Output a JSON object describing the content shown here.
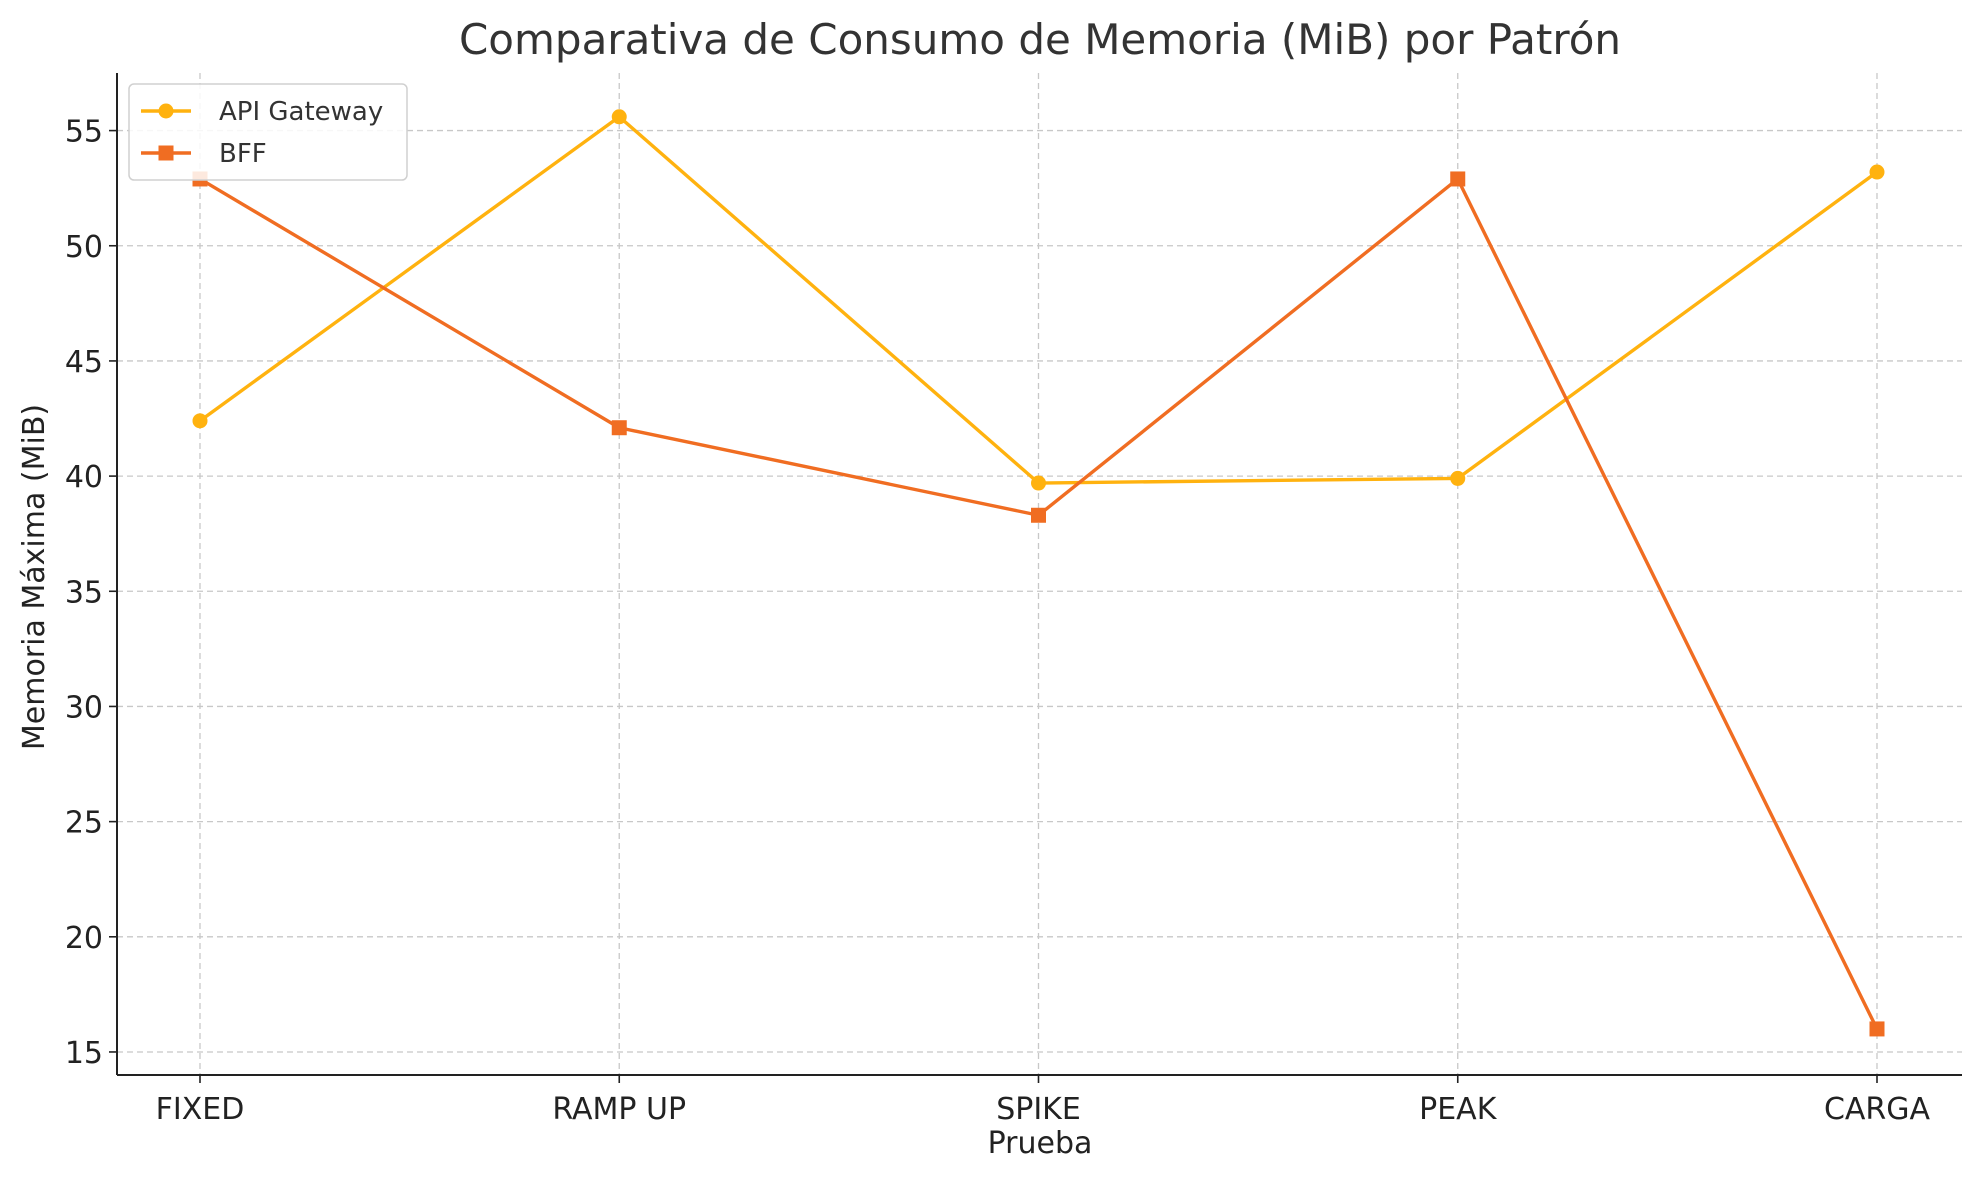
{
  "chart_data": {
    "type": "line",
    "title": "Comparativa de Consumo de Memoria (MiB) por Patrón",
    "xlabel": "Prueba",
    "ylabel": "Memoria Máxima (MiB)",
    "categories": [
      "FIXED",
      "RAMP UP",
      "SPIKE",
      "PEAK",
      "CARGA"
    ],
    "ylim": [
      14,
      57.5
    ],
    "yticks": [
      15,
      20,
      25,
      30,
      35,
      40,
      45,
      50,
      55
    ],
    "grid": true,
    "legend_position": "top-left",
    "series": [
      {
        "name": "API Gateway",
        "marker": "circle",
        "color": "#FFB20F",
        "values": [
          42.4,
          55.6,
          39.7,
          39.9,
          53.2
        ]
      },
      {
        "name": "BFF",
        "marker": "square",
        "color": "#F06D22",
        "values": [
          52.9,
          42.1,
          38.3,
          52.9,
          16.0
        ]
      }
    ]
  }
}
